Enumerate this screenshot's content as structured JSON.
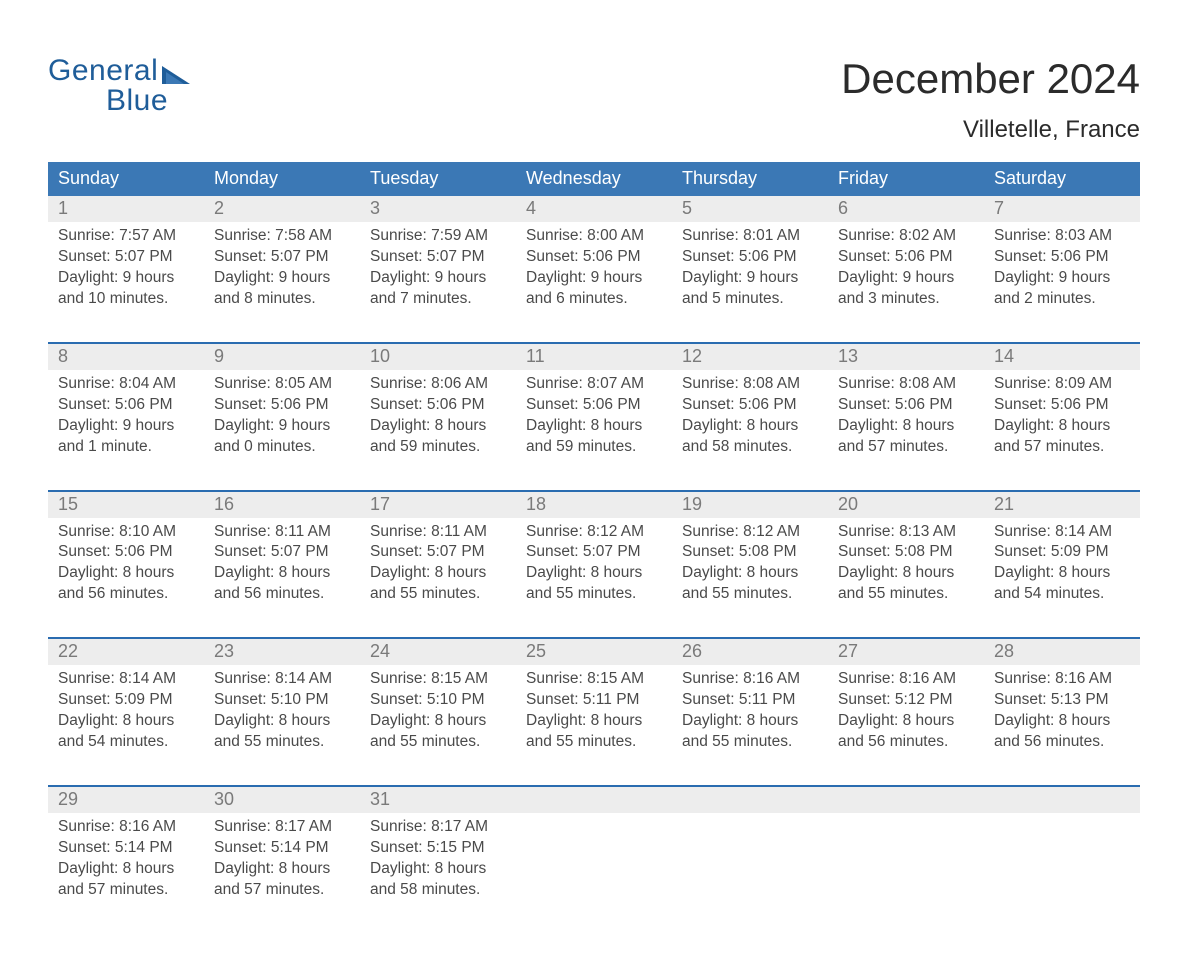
{
  "brand": {
    "word1": "General",
    "word2": "Blue",
    "logo_color": "#1f5d99"
  },
  "title": {
    "month": "December 2024",
    "location": "Villetelle, France"
  },
  "colors": {
    "header_blue": "#3b78b5",
    "accent_blue": "#2a6cb0",
    "row_bg": "#ededed",
    "page_bg": "#ffffff",
    "text_dark": "#2e2e2e",
    "text_gray": "#4a4a4a",
    "daynum_gray": "#7a7a7a"
  },
  "weekdays": [
    "Sunday",
    "Monday",
    "Tuesday",
    "Wednesday",
    "Thursday",
    "Friday",
    "Saturday"
  ],
  "weeks": [
    [
      {
        "n": "1",
        "sr": "Sunrise: 7:57 AM",
        "ss": "Sunset: 5:07 PM",
        "d1": "Daylight: 9 hours",
        "d2": "and 10 minutes."
      },
      {
        "n": "2",
        "sr": "Sunrise: 7:58 AM",
        "ss": "Sunset: 5:07 PM",
        "d1": "Daylight: 9 hours",
        "d2": "and 8 minutes."
      },
      {
        "n": "3",
        "sr": "Sunrise: 7:59 AM",
        "ss": "Sunset: 5:07 PM",
        "d1": "Daylight: 9 hours",
        "d2": "and 7 minutes."
      },
      {
        "n": "4",
        "sr": "Sunrise: 8:00 AM",
        "ss": "Sunset: 5:06 PM",
        "d1": "Daylight: 9 hours",
        "d2": "and 6 minutes."
      },
      {
        "n": "5",
        "sr": "Sunrise: 8:01 AM",
        "ss": "Sunset: 5:06 PM",
        "d1": "Daylight: 9 hours",
        "d2": "and 5 minutes."
      },
      {
        "n": "6",
        "sr": "Sunrise: 8:02 AM",
        "ss": "Sunset: 5:06 PM",
        "d1": "Daylight: 9 hours",
        "d2": "and 3 minutes."
      },
      {
        "n": "7",
        "sr": "Sunrise: 8:03 AM",
        "ss": "Sunset: 5:06 PM",
        "d1": "Daylight: 9 hours",
        "d2": "and 2 minutes."
      }
    ],
    [
      {
        "n": "8",
        "sr": "Sunrise: 8:04 AM",
        "ss": "Sunset: 5:06 PM",
        "d1": "Daylight: 9 hours",
        "d2": "and 1 minute."
      },
      {
        "n": "9",
        "sr": "Sunrise: 8:05 AM",
        "ss": "Sunset: 5:06 PM",
        "d1": "Daylight: 9 hours",
        "d2": "and 0 minutes."
      },
      {
        "n": "10",
        "sr": "Sunrise: 8:06 AM",
        "ss": "Sunset: 5:06 PM",
        "d1": "Daylight: 8 hours",
        "d2": "and 59 minutes."
      },
      {
        "n": "11",
        "sr": "Sunrise: 8:07 AM",
        "ss": "Sunset: 5:06 PM",
        "d1": "Daylight: 8 hours",
        "d2": "and 59 minutes."
      },
      {
        "n": "12",
        "sr": "Sunrise: 8:08 AM",
        "ss": "Sunset: 5:06 PM",
        "d1": "Daylight: 8 hours",
        "d2": "and 58 minutes."
      },
      {
        "n": "13",
        "sr": "Sunrise: 8:08 AM",
        "ss": "Sunset: 5:06 PM",
        "d1": "Daylight: 8 hours",
        "d2": "and 57 minutes."
      },
      {
        "n": "14",
        "sr": "Sunrise: 8:09 AM",
        "ss": "Sunset: 5:06 PM",
        "d1": "Daylight: 8 hours",
        "d2": "and 57 minutes."
      }
    ],
    [
      {
        "n": "15",
        "sr": "Sunrise: 8:10 AM",
        "ss": "Sunset: 5:06 PM",
        "d1": "Daylight: 8 hours",
        "d2": "and 56 minutes."
      },
      {
        "n": "16",
        "sr": "Sunrise: 8:11 AM",
        "ss": "Sunset: 5:07 PM",
        "d1": "Daylight: 8 hours",
        "d2": "and 56 minutes."
      },
      {
        "n": "17",
        "sr": "Sunrise: 8:11 AM",
        "ss": "Sunset: 5:07 PM",
        "d1": "Daylight: 8 hours",
        "d2": "and 55 minutes."
      },
      {
        "n": "18",
        "sr": "Sunrise: 8:12 AM",
        "ss": "Sunset: 5:07 PM",
        "d1": "Daylight: 8 hours",
        "d2": "and 55 minutes."
      },
      {
        "n": "19",
        "sr": "Sunrise: 8:12 AM",
        "ss": "Sunset: 5:08 PM",
        "d1": "Daylight: 8 hours",
        "d2": "and 55 minutes."
      },
      {
        "n": "20",
        "sr": "Sunrise: 8:13 AM",
        "ss": "Sunset: 5:08 PM",
        "d1": "Daylight: 8 hours",
        "d2": "and 55 minutes."
      },
      {
        "n": "21",
        "sr": "Sunrise: 8:14 AM",
        "ss": "Sunset: 5:09 PM",
        "d1": "Daylight: 8 hours",
        "d2": "and 54 minutes."
      }
    ],
    [
      {
        "n": "22",
        "sr": "Sunrise: 8:14 AM",
        "ss": "Sunset: 5:09 PM",
        "d1": "Daylight: 8 hours",
        "d2": "and 54 minutes."
      },
      {
        "n": "23",
        "sr": "Sunrise: 8:14 AM",
        "ss": "Sunset: 5:10 PM",
        "d1": "Daylight: 8 hours",
        "d2": "and 55 minutes."
      },
      {
        "n": "24",
        "sr": "Sunrise: 8:15 AM",
        "ss": "Sunset: 5:10 PM",
        "d1": "Daylight: 8 hours",
        "d2": "and 55 minutes."
      },
      {
        "n": "25",
        "sr": "Sunrise: 8:15 AM",
        "ss": "Sunset: 5:11 PM",
        "d1": "Daylight: 8 hours",
        "d2": "and 55 minutes."
      },
      {
        "n": "26",
        "sr": "Sunrise: 8:16 AM",
        "ss": "Sunset: 5:11 PM",
        "d1": "Daylight: 8 hours",
        "d2": "and 55 minutes."
      },
      {
        "n": "27",
        "sr": "Sunrise: 8:16 AM",
        "ss": "Sunset: 5:12 PM",
        "d1": "Daylight: 8 hours",
        "d2": "and 56 minutes."
      },
      {
        "n": "28",
        "sr": "Sunrise: 8:16 AM",
        "ss": "Sunset: 5:13 PM",
        "d1": "Daylight: 8 hours",
        "d2": "and 56 minutes."
      }
    ],
    [
      {
        "n": "29",
        "sr": "Sunrise: 8:16 AM",
        "ss": "Sunset: 5:14 PM",
        "d1": "Daylight: 8 hours",
        "d2": "and 57 minutes."
      },
      {
        "n": "30",
        "sr": "Sunrise: 8:17 AM",
        "ss": "Sunset: 5:14 PM",
        "d1": "Daylight: 8 hours",
        "d2": "and 57 minutes."
      },
      {
        "n": "31",
        "sr": "Sunrise: 8:17 AM",
        "ss": "Sunset: 5:15 PM",
        "d1": "Daylight: 8 hours",
        "d2": "and 58 minutes."
      },
      null,
      null,
      null,
      null
    ]
  ]
}
